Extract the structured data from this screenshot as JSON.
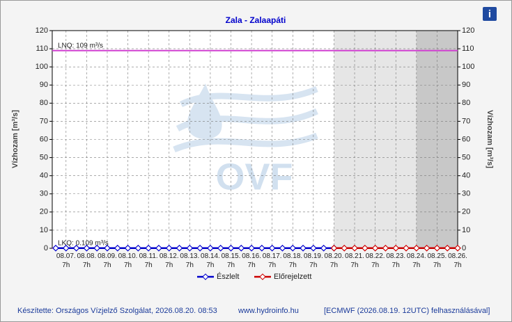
{
  "chart_data": {
    "type": "line",
    "title": "Zala - Zalaapáti",
    "y_label": "Vízhozam [m³/s]",
    "y2_label": "Vízhozam [m³/s]",
    "categories": [
      null,
      "08.07.\n7h",
      null,
      "08.08.\n7h",
      null,
      "08.09.\n7h",
      null,
      "08.10.\n7h",
      null,
      "08.11.\n7h",
      null,
      "08.12.\n7h",
      null,
      "08.13.\n7h",
      null,
      "08.14.\n7h",
      null,
      "08.15.\n7h",
      null,
      "08.16.\n7h",
      null,
      "08.17.\n7h",
      null,
      "08.18.\n7h",
      null,
      "08.19.\n7h",
      null,
      "08.20.\n7h",
      null,
      "08.21.\n7h",
      null,
      "08.22.\n7h",
      null,
      "08.23.\n7h",
      null,
      "08.24.\n7h",
      null,
      "08.25.\n7h",
      null,
      "08.26.\n7h"
    ],
    "series": [
      {
        "name": "Észlelt",
        "color": "#0000cc",
        "values": [
          0.1,
          0.1,
          0.1,
          0.1,
          0.1,
          0.1,
          0.1,
          0.1,
          0.1,
          0.1,
          0.1,
          0.1,
          0.1,
          0.1,
          0.1,
          0.1,
          0.1,
          0.1,
          0.1,
          0.1,
          0.1,
          0.1,
          0.1,
          0.1,
          0.1,
          0.1,
          0.1,
          0.1,
          null,
          null,
          null,
          null,
          null,
          null,
          null,
          null,
          null,
          null,
          null,
          null
        ]
      },
      {
        "name": "Előrejelzett",
        "color": "#cc0000",
        "values": [
          null,
          null,
          null,
          null,
          null,
          null,
          null,
          null,
          null,
          null,
          null,
          null,
          null,
          null,
          null,
          null,
          null,
          null,
          null,
          null,
          null,
          null,
          null,
          null,
          null,
          null,
          null,
          0.1,
          0.1,
          0.1,
          0.1,
          0.1,
          0.1,
          0.1,
          0.1,
          0.1,
          0.1,
          0.1,
          0.1,
          0.1
        ]
      }
    ],
    "thresholds": [
      {
        "label": "LNQ: 109 m³/s",
        "value": 109,
        "color": "#d040d0"
      },
      {
        "label": "LKQ: 0.109 m³/s",
        "value": 0.109,
        "color": "#d040d0"
      }
    ],
    "ylim": [
      0,
      120
    ],
    "yticks": [
      0,
      10,
      20,
      30,
      40,
      50,
      60,
      70,
      80,
      90,
      100,
      110,
      120
    ],
    "y2lim": [
      0,
      120
    ],
    "y2ticks": [
      0,
      10,
      20,
      30,
      40,
      50,
      60,
      70,
      80,
      90,
      100,
      110,
      120
    ],
    "grid": true,
    "watermark": "OVF",
    "footer": {
      "author": "Készítette: Országos Vízjelző Szolgálat, 2026.08.20. 08:53",
      "url": "www.hydroinfo.hu",
      "source": "[ECMWF (2026.08.19. 12UTC) felhasználásával]"
    },
    "info_icon": "i"
  }
}
